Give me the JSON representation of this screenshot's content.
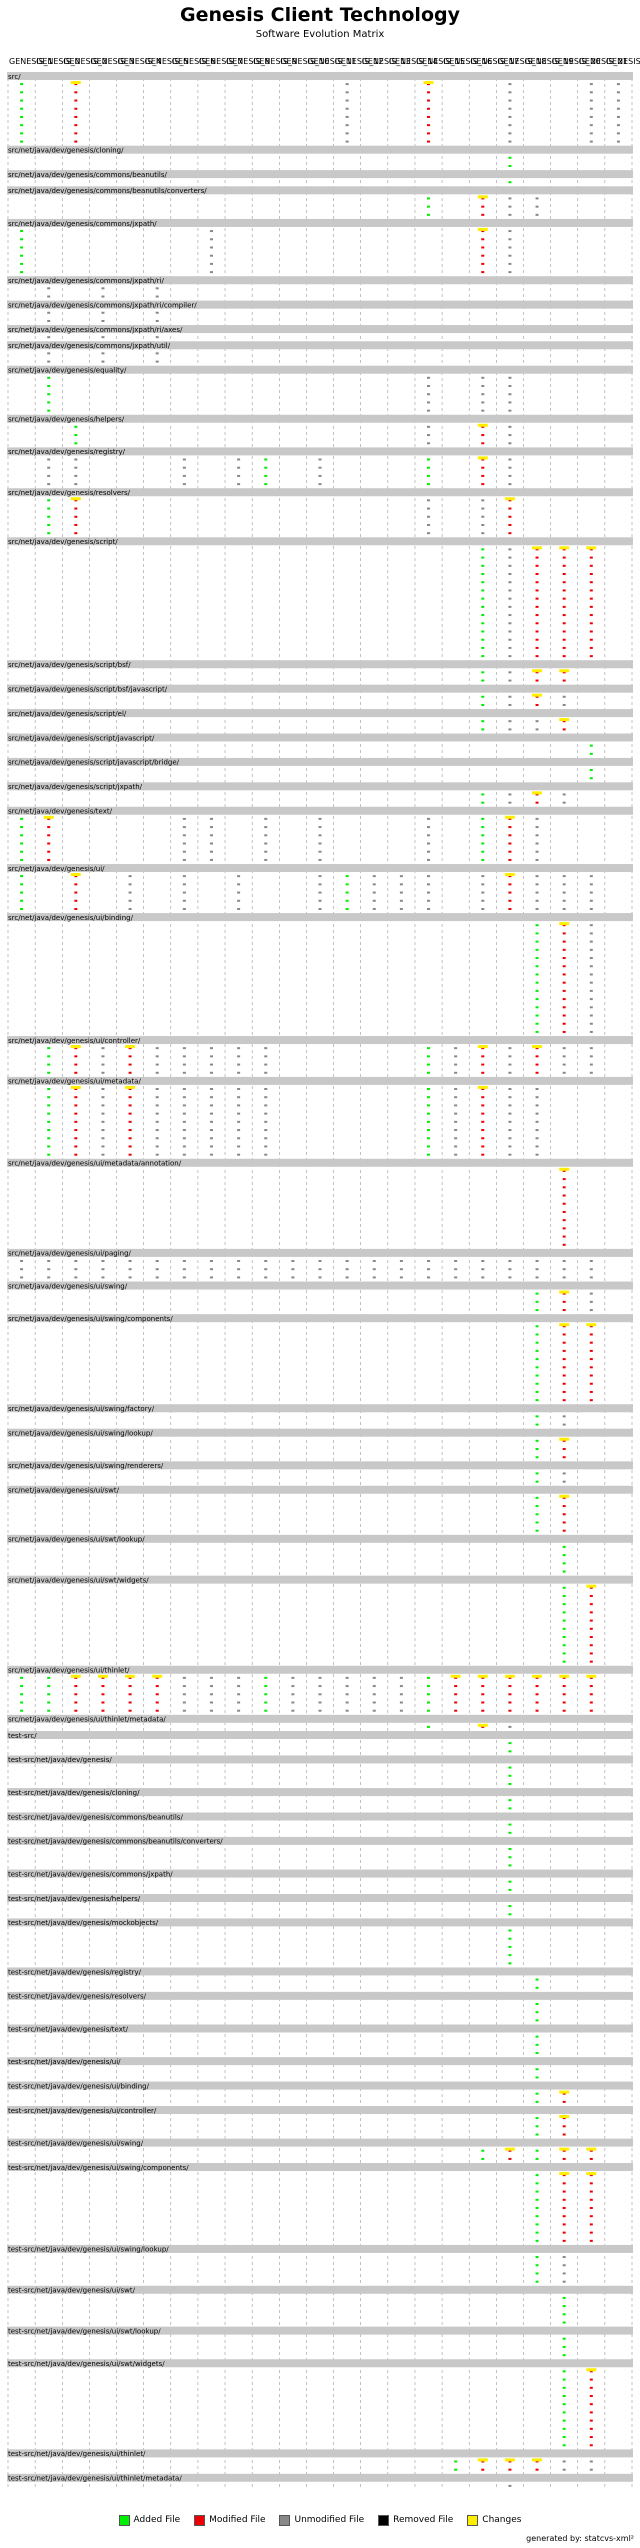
{
  "title": "Genesis Client Technology",
  "subtitle": "Software Evolution Matrix",
  "legend": {
    "added": "Added File",
    "modified": "Modified File",
    "unmodified": "Unmodified File",
    "removed": "Removed File",
    "changes": "Changes"
  },
  "colors": {
    "added": "#00ee00",
    "modified": "#ee0000",
    "unmodified": "#888888",
    "removed": "#000000",
    "changes": "#ffee00",
    "directory_band": "#c8c8c8"
  },
  "footer": "generated by: statcvs-xml²",
  "chart_data": {
    "type": "heatmap",
    "columns": [
      "GENESIS_1",
      "GENESIS_0",
      "GENESIS_2",
      "GENESIS_3",
      "GENESIS_4",
      "GENESIS_5",
      "GENESIS_6",
      "GENESIS_7",
      "GENESIS_8",
      "GENESIS_9",
      "GENESIS_10",
      "GENESIS_11",
      "GENESIS_12",
      "GENESIS_13",
      "GENESIS_14",
      "GENESIS_15",
      "GENESIS_16",
      "GENESIS_17",
      "GENESIS_18",
      "GENESIS_19",
      "GENESIS_20",
      "GENESIS_21",
      "GENESIS_22"
    ],
    "directories": [
      {
        "name": "src/",
        "files": 8,
        "active": [
          0,
          2,
          12,
          15,
          18,
          21,
          22
        ],
        "added": [
          0
        ],
        "changed": [
          2,
          15
        ]
      },
      {
        "name": "src/net/java/dev/genesis/cloning/",
        "files": 2,
        "active": [
          18
        ],
        "added": [
          18
        ],
        "changed": []
      },
      {
        "name": "src/net/java/dev/genesis/commons/beanutils/",
        "files": 1,
        "active": [
          18
        ],
        "added": [
          18
        ],
        "changed": []
      },
      {
        "name": "src/net/java/dev/genesis/commons/beanutils/converters/",
        "files": 3,
        "active": [
          15,
          17,
          18,
          19
        ],
        "added": [
          15
        ],
        "changed": [
          17
        ]
      },
      {
        "name": "src/net/java/dev/genesis/commons/jxpath/",
        "files": 6,
        "active": [
          0,
          7,
          17,
          18
        ],
        "added": [
          0
        ],
        "changed": [
          17
        ]
      },
      {
        "name": "src/net/java/dev/genesis/commons/jxpath/ri/",
        "files": 2,
        "active": [
          1,
          3,
          5
        ],
        "added": [],
        "changed": []
      },
      {
        "name": "src/net/java/dev/genesis/commons/jxpath/ri/compiler/",
        "files": 2,
        "active": [
          1,
          3,
          5
        ],
        "added": [],
        "changed": []
      },
      {
        "name": "src/net/java/dev/genesis/commons/jxpath/ri/axes/",
        "files": 1,
        "active": [
          1,
          3,
          5
        ],
        "added": [],
        "changed": []
      },
      {
        "name": "src/net/java/dev/genesis/commons/jxpath/util/",
        "files": 2,
        "active": [
          1,
          3,
          5
        ],
        "added": [],
        "changed": []
      },
      {
        "name": "src/net/java/dev/genesis/equality/",
        "files": 5,
        "active": [
          1,
          15,
          17,
          18
        ],
        "added": [
          1
        ],
        "changed": []
      },
      {
        "name": "src/net/java/dev/genesis/helpers/",
        "files": 3,
        "active": [
          2,
          15,
          17,
          18
        ],
        "added": [
          2
        ],
        "changed": [
          17
        ]
      },
      {
        "name": "src/net/java/dev/genesis/registry/",
        "files": 4,
        "active": [
          1,
          2,
          6,
          8,
          9,
          11,
          15,
          17,
          18
        ],
        "added": [
          9,
          15
        ],
        "changed": [
          17
        ]
      },
      {
        "name": "src/net/java/dev/genesis/resolvers/",
        "files": 5,
        "active": [
          1,
          2,
          15,
          17,
          18
        ],
        "added": [
          1
        ],
        "changed": [
          2,
          18
        ]
      },
      {
        "name": "src/net/java/dev/genesis/script/",
        "files": 14,
        "active": [
          17,
          18,
          19,
          20,
          21
        ],
        "added": [
          17
        ],
        "changed": [
          19,
          20,
          21
        ]
      },
      {
        "name": "src/net/java/dev/genesis/script/bsf/",
        "files": 2,
        "active": [
          17,
          18,
          19,
          20
        ],
        "added": [
          17
        ],
        "changed": [
          19,
          20
        ]
      },
      {
        "name": "src/net/java/dev/genesis/script/bsf/javascript/",
        "files": 2,
        "active": [
          17,
          18,
          19,
          20
        ],
        "added": [
          17
        ],
        "changed": [
          19
        ]
      },
      {
        "name": "src/net/java/dev/genesis/script/el/",
        "files": 2,
        "active": [
          17,
          18,
          19,
          20
        ],
        "added": [
          17
        ],
        "changed": [
          20
        ]
      },
      {
        "name": "src/net/java/dev/genesis/script/javascript/",
        "files": 2,
        "active": [
          21
        ],
        "added": [
          21
        ],
        "changed": []
      },
      {
        "name": "src/net/java/dev/genesis/script/javascript/bridge/",
        "files": 2,
        "active": [
          21
        ],
        "added": [
          21
        ],
        "changed": []
      },
      {
        "name": "src/net/java/dev/genesis/script/jxpath/",
        "files": 2,
        "active": [
          17,
          18,
          19,
          20
        ],
        "added": [
          17
        ],
        "changed": [
          19
        ]
      },
      {
        "name": "src/net/java/dev/genesis/text/",
        "files": 6,
        "active": [
          0,
          1,
          6,
          7,
          9,
          11,
          15,
          17,
          18,
          19
        ],
        "added": [
          0,
          17
        ],
        "changed": [
          1,
          18
        ]
      },
      {
        "name": "src/net/java/dev/genesis/ui/",
        "files": 5,
        "active": [
          0,
          2,
          4,
          6,
          8,
          11,
          12,
          13,
          14,
          15,
          17,
          18,
          19,
          20,
          21
        ],
        "added": [
          0,
          12
        ],
        "changed": [
          2,
          18
        ]
      },
      {
        "name": "src/net/java/dev/genesis/ui/binding/",
        "files": 14,
        "active": [
          19,
          20,
          21
        ],
        "added": [
          19
        ],
        "changed": [
          20
        ]
      },
      {
        "name": "src/net/java/dev/genesis/ui/controller/",
        "files": 4,
        "active": [
          1,
          2,
          3,
          4,
          5,
          6,
          7,
          8,
          9,
          15,
          16,
          17,
          18,
          19,
          20,
          21
        ],
        "added": [
          1,
          15
        ],
        "changed": [
          2,
          4,
          17,
          19
        ]
      },
      {
        "name": "src/net/java/dev/genesis/ui/metadata/",
        "files": 9,
        "active": [
          1,
          2,
          3,
          4,
          5,
          6,
          7,
          8,
          9,
          15,
          16,
          17,
          18,
          19
        ],
        "added": [
          1,
          15
        ],
        "changed": [
          2,
          4,
          17
        ]
      },
      {
        "name": "src/net/java/dev/genesis/ui/metadata/annotation/",
        "files": 10,
        "active": [
          20
        ],
        "added": [],
        "changed": [
          20
        ]
      },
      {
        "name": "src/net/java/dev/genesis/ui/paging/",
        "files": 3,
        "active": [
          0,
          1,
          2,
          3,
          4,
          5,
          6,
          7,
          8,
          9,
          10,
          11,
          12,
          13,
          14,
          15,
          16,
          17,
          18,
          19,
          20,
          21
        ],
        "added": [],
        "changed": []
      },
      {
        "name": "src/net/java/dev/genesis/ui/swing/",
        "files": 3,
        "active": [
          19,
          20,
          21
        ],
        "added": [
          19
        ],
        "changed": [
          20
        ]
      },
      {
        "name": "src/net/java/dev/genesis/ui/swing/components/",
        "files": 10,
        "active": [
          19,
          20,
          21
        ],
        "added": [
          19
        ],
        "changed": [
          20,
          21
        ]
      },
      {
        "name": "src/net/java/dev/genesis/ui/swing/factory/",
        "files": 2,
        "active": [
          19,
          20
        ],
        "added": [
          19
        ],
        "changed": []
      },
      {
        "name": "src/net/java/dev/genesis/ui/swing/lookup/",
        "files": 3,
        "active": [
          19,
          20
        ],
        "added": [
          19
        ],
        "changed": [
          20
        ]
      },
      {
        "name": "src/net/java/dev/genesis/ui/swing/renderers/",
        "files": 2,
        "active": [
          19,
          20
        ],
        "added": [
          19
        ],
        "changed": []
      },
      {
        "name": "src/net/java/dev/genesis/ui/swt/",
        "files": 5,
        "active": [
          19,
          20
        ],
        "added": [
          19
        ],
        "changed": [
          20
        ]
      },
      {
        "name": "src/net/java/dev/genesis/ui/swt/lookup/",
        "files": 4,
        "active": [
          20
        ],
        "added": [
          20
        ],
        "changed": []
      },
      {
        "name": "src/net/java/dev/genesis/ui/swt/widgets/",
        "files": 10,
        "active": [
          20,
          21
        ],
        "added": [
          20
        ],
        "changed": [
          21
        ]
      },
      {
        "name": "src/net/java/dev/genesis/ui/thinlet/",
        "files": 5,
        "active": [
          0,
          1,
          2,
          3,
          4,
          5,
          6,
          7,
          8,
          9,
          10,
          11,
          12,
          13,
          14,
          15,
          16,
          17,
          18,
          19,
          20,
          21
        ],
        "added": [
          0,
          1,
          9,
          15
        ],
        "changed": [
          2,
          3,
          4,
          5,
          16,
          17,
          18,
          19,
          20,
          21
        ]
      },
      {
        "name": "src/net/java/dev/genesis/ui/thinlet/metadata/",
        "files": 1,
        "active": [
          15,
          17,
          18
        ],
        "added": [
          15
        ],
        "changed": [
          17
        ]
      },
      {
        "name": "test-src/",
        "files": 2,
        "active": [
          18
        ],
        "added": [
          18
        ],
        "changed": []
      },
      {
        "name": "test-src/net/java/dev/genesis/",
        "files": 3,
        "active": [
          18
        ],
        "added": [
          18
        ],
        "changed": []
      },
      {
        "name": "test-src/net/java/dev/genesis/cloning/",
        "files": 2,
        "active": [
          18
        ],
        "added": [
          18
        ],
        "changed": []
      },
      {
        "name": "test-src/net/java/dev/genesis/commons/beanutils/",
        "files": 2,
        "active": [
          18
        ],
        "added": [
          18
        ],
        "changed": []
      },
      {
        "name": "test-src/net/java/dev/genesis/commons/beanutils/converters/",
        "files": 3,
        "active": [
          18
        ],
        "added": [
          18
        ],
        "changed": []
      },
      {
        "name": "test-src/net/java/dev/genesis/commons/jxpath/",
        "files": 2,
        "active": [
          18
        ],
        "added": [
          18
        ],
        "changed": []
      },
      {
        "name": "test-src/net/java/dev/genesis/helpers/",
        "files": 2,
        "active": [
          18
        ],
        "added": [
          18
        ],
        "changed": []
      },
      {
        "name": "test-src/net/java/dev/genesis/mockobjects/",
        "files": 5,
        "active": [
          18
        ],
        "added": [
          18
        ],
        "changed": []
      },
      {
        "name": "test-src/net/java/dev/genesis/registry/",
        "files": 2,
        "active": [
          19
        ],
        "added": [
          19
        ],
        "changed": []
      },
      {
        "name": "test-src/net/java/dev/genesis/resolvers/",
        "files": 3,
        "active": [
          19
        ],
        "added": [
          19
        ],
        "changed": []
      },
      {
        "name": "test-src/net/java/dev/genesis/text/",
        "files": 3,
        "active": [
          19
        ],
        "added": [
          19
        ],
        "changed": []
      },
      {
        "name": "test-src/net/java/dev/genesis/ui/",
        "files": 2,
        "active": [
          19
        ],
        "added": [
          19
        ],
        "changed": []
      },
      {
        "name": "test-src/net/java/dev/genesis/ui/binding/",
        "files": 2,
        "active": [
          19,
          20
        ],
        "added": [
          19
        ],
        "changed": [
          20
        ]
      },
      {
        "name": "test-src/net/java/dev/genesis/ui/controller/",
        "files": 3,
        "active": [
          19,
          20
        ],
        "added": [
          19
        ],
        "changed": [
          20
        ]
      },
      {
        "name": "test-src/net/java/dev/genesis/ui/swing/",
        "files": 2,
        "active": [
          17,
          18,
          19,
          20,
          21
        ],
        "added": [
          17,
          19
        ],
        "changed": [
          18,
          20,
          21
        ]
      },
      {
        "name": "test-src/net/java/dev/genesis/ui/swing/components/",
        "files": 9,
        "active": [
          19,
          20,
          21
        ],
        "added": [
          19
        ],
        "changed": [
          20,
          21
        ]
      },
      {
        "name": "test-src/net/java/dev/genesis/ui/swing/lookup/",
        "files": 4,
        "active": [
          19,
          20
        ],
        "added": [
          19
        ],
        "changed": []
      },
      {
        "name": "test-src/net/java/dev/genesis/ui/swt/",
        "files": 4,
        "active": [
          20
        ],
        "added": [
          20
        ],
        "changed": []
      },
      {
        "name": "test-src/net/java/dev/genesis/ui/swt/lookup/",
        "files": 3,
        "active": [
          20
        ],
        "added": [
          20
        ],
        "changed": []
      },
      {
        "name": "test-src/net/java/dev/genesis/ui/swt/widgets/",
        "files": 10,
        "active": [
          20,
          21
        ],
        "added": [
          20
        ],
        "changed": [
          21
        ]
      },
      {
        "name": "test-src/net/java/dev/genesis/ui/thinlet/",
        "files": 2,
        "active": [
          16,
          17,
          18,
          19,
          20,
          21
        ],
        "added": [
          16
        ],
        "changed": [
          17,
          18,
          19
        ]
      },
      {
        "name": "test-src/net/java/dev/genesis/ui/thinlet/metadata/",
        "files": 1,
        "active": [
          18
        ],
        "added": [],
        "changed": []
      }
    ]
  }
}
